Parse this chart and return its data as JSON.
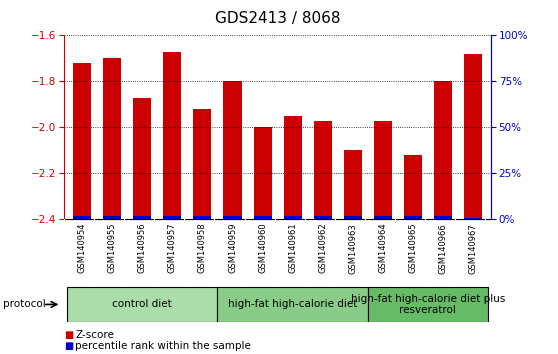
{
  "title": "GDS2413 / 8068",
  "samples": [
    "GSM140954",
    "GSM140955",
    "GSM140956",
    "GSM140957",
    "GSM140958",
    "GSM140959",
    "GSM140960",
    "GSM140961",
    "GSM140962",
    "GSM140963",
    "GSM140964",
    "GSM140965",
    "GSM140966",
    "GSM140967"
  ],
  "z_scores": [
    -1.72,
    -1.7,
    -1.87,
    -1.67,
    -1.92,
    -1.8,
    -2.0,
    -1.95,
    -1.97,
    -2.1,
    -1.97,
    -2.12,
    -1.8,
    -1.68
  ],
  "percentile_ranks": [
    2,
    2,
    2,
    2,
    2,
    2,
    2,
    2,
    2,
    2,
    2,
    2,
    2,
    1
  ],
  "ylim_left": [
    -2.4,
    -1.6
  ],
  "ylim_right": [
    0,
    100
  ],
  "yticks_left": [
    -2.4,
    -2.2,
    -2.0,
    -1.8,
    -1.6
  ],
  "yticks_right": [
    0,
    25,
    50,
    75,
    100
  ],
  "ytick_labels_right": [
    "0%",
    "25%",
    "50%",
    "75%",
    "100%"
  ],
  "bar_color_red": "#cc0000",
  "bar_color_blue": "#0000cc",
  "groups": [
    {
      "label": "control diet",
      "start": 0,
      "end": 4,
      "color": "#aaddaa"
    },
    {
      "label": "high-fat high-calorie diet",
      "start": 5,
      "end": 9,
      "color": "#88cc88"
    },
    {
      "label": "high-fat high-calorie diet plus\nresveratrol",
      "start": 10,
      "end": 13,
      "color": "#66bb66"
    }
  ],
  "group_label_fontsize": 7.5,
  "protocol_label": "protocol",
  "legend_zscore": "Z-score",
  "legend_percentile": "percentile rank within the sample",
  "bar_color_red_hex": "#cc0000",
  "bar_color_blue_hex": "#0000cc",
  "tick_color_left": "#cc0000",
  "tick_color_right": "#0000cc",
  "grid_linestyle": ":",
  "grid_color": "#000000",
  "background_xtick": "#cccccc",
  "group_border_color": "#000000",
  "title_fontsize": 11
}
